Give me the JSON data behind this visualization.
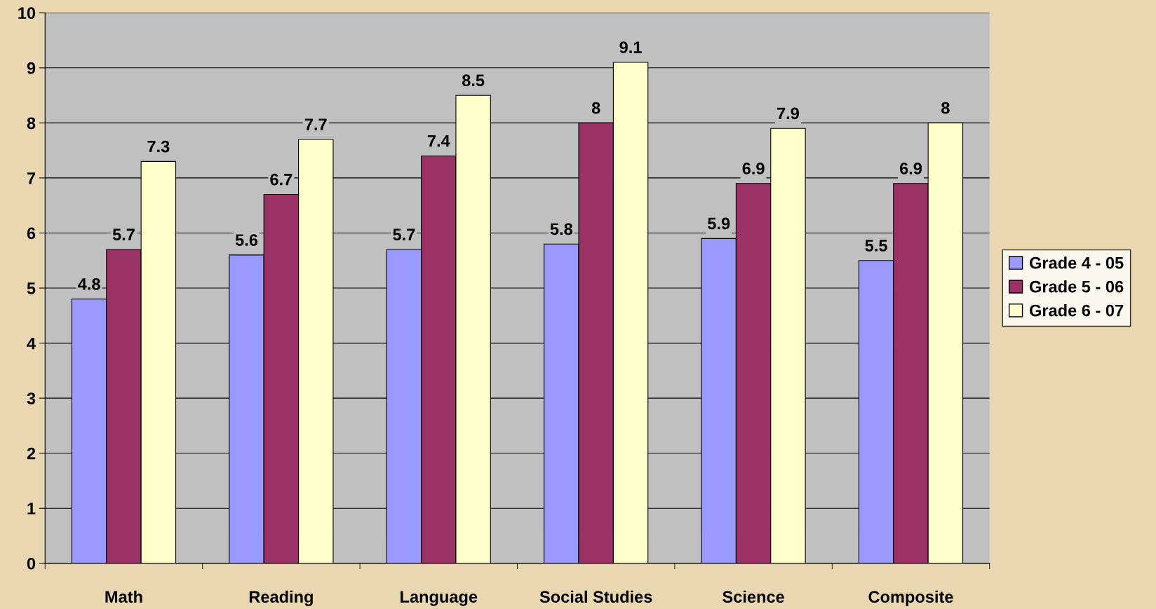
{
  "chart_data": {
    "type": "bar",
    "categories": [
      "Math",
      "Reading",
      "Language",
      "Social Studies",
      "Science",
      "Composite"
    ],
    "series": [
      {
        "name": "Grade 4 - 05",
        "color": "#9999ff",
        "values": [
          4.8,
          5.6,
          5.7,
          5.8,
          5.9,
          5.5
        ]
      },
      {
        "name": "Grade 5 - 06",
        "color": "#993366",
        "values": [
          5.7,
          6.7,
          7.4,
          8,
          6.9,
          6.9
        ]
      },
      {
        "name": "Grade 6 - 07",
        "color": "#ffffcc",
        "values": [
          7.3,
          7.7,
          8.5,
          9.1,
          7.9,
          8
        ]
      }
    ],
    "ylim": [
      0,
      10
    ],
    "yticks": [
      0,
      1,
      2,
      3,
      4,
      5,
      6,
      7,
      8,
      9,
      10
    ],
    "grid": "y",
    "legend": "right",
    "data_labels": true
  }
}
